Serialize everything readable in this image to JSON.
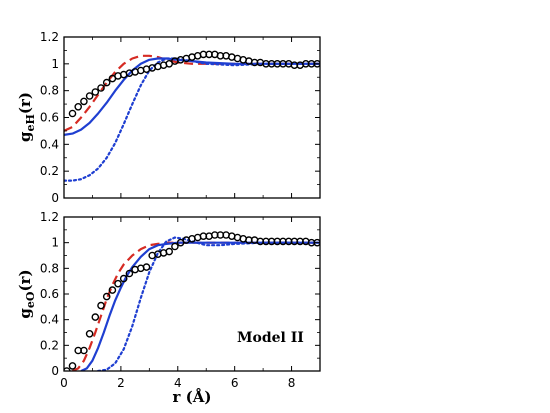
{
  "chart_data": [
    {
      "type": "line",
      "id": "eH",
      "ylabel_main": "g",
      "ylabel_sub": "eH",
      "ylabel_tail": "(r)",
      "xlabel": "",
      "xlim": [
        0,
        9
      ],
      "ylim": [
        0,
        1.2
      ],
      "xticks": [
        0,
        2,
        4,
        6,
        8
      ],
      "yticks": [
        0,
        0.2,
        0.4,
        0.6,
        0.8,
        1,
        1.2
      ],
      "ytick_labels": [
        "0",
        "0.2",
        "0.4",
        "0.6",
        "0.8",
        "1",
        "1.2"
      ],
      "show_xtick_labels": false,
      "series": [
        {
          "style": "dashed",
          "color": "#d62b23",
          "x": [
            0,
            0.3,
            0.6,
            0.9,
            1.2,
            1.5,
            1.8,
            2.1,
            2.4,
            2.7,
            3.0,
            3.3,
            3.6,
            4.0,
            4.5,
            5.0,
            6.0,
            7.0,
            8.0,
            9.0
          ],
          "y": [
            0.5,
            0.53,
            0.6,
            0.68,
            0.77,
            0.86,
            0.94,
            1.0,
            1.04,
            1.06,
            1.06,
            1.05,
            1.03,
            1.01,
            1.0,
            1.0,
            1.0,
            1.0,
            1.0,
            1.0
          ]
        },
        {
          "style": "solid",
          "color": "#1f3fd1",
          "x": [
            0,
            0.3,
            0.6,
            0.9,
            1.2,
            1.5,
            1.8,
            2.1,
            2.4,
            2.7,
            3.0,
            3.3,
            3.6,
            4.0,
            4.5,
            5.0,
            6.0,
            7.0,
            8.0,
            9.0
          ],
          "y": [
            0.47,
            0.48,
            0.51,
            0.56,
            0.63,
            0.71,
            0.8,
            0.88,
            0.95,
            1.0,
            1.03,
            1.04,
            1.04,
            1.03,
            1.02,
            1.01,
            1.0,
            1.0,
            1.0,
            1.0
          ]
        },
        {
          "style": "dotted",
          "color": "#1f3fd1",
          "x": [
            0,
            0.3,
            0.6,
            0.9,
            1.2,
            1.5,
            1.8,
            2.1,
            2.4,
            2.7,
            3.0,
            3.3,
            3.6,
            3.9,
            4.2,
            4.5,
            5.0,
            6.0,
            7.0,
            8.0,
            9.0
          ],
          "y": [
            0.13,
            0.13,
            0.14,
            0.17,
            0.22,
            0.3,
            0.41,
            0.55,
            0.7,
            0.84,
            0.95,
            1.01,
            1.04,
            1.04,
            1.03,
            1.02,
            1.0,
            0.99,
            1.0,
            1.0,
            1.0
          ]
        },
        {
          "style": "circles",
          "color": "#000000",
          "x": [
            0.3,
            0.5,
            0.7,
            0.9,
            1.1,
            1.3,
            1.5,
            1.7,
            1.9,
            2.1,
            2.3,
            2.5,
            2.7,
            2.9,
            3.1,
            3.3,
            3.5,
            3.7,
            3.9,
            4.1,
            4.3,
            4.5,
            4.7,
            4.9,
            5.1,
            5.3,
            5.5,
            5.7,
            5.9,
            6.1,
            6.3,
            6.5,
            6.7,
            6.9,
            7.1,
            7.3,
            7.5,
            7.7,
            7.9,
            8.1,
            8.3,
            8.5,
            8.7,
            8.9
          ],
          "y": [
            0.63,
            0.68,
            0.72,
            0.76,
            0.79,
            0.82,
            0.86,
            0.89,
            0.91,
            0.92,
            0.93,
            0.94,
            0.95,
            0.96,
            0.97,
            0.98,
            0.99,
            1.0,
            1.02,
            1.03,
            1.04,
            1.05,
            1.06,
            1.07,
            1.07,
            1.07,
            1.06,
            1.06,
            1.05,
            1.04,
            1.03,
            1.02,
            1.01,
            1.01,
            1.0,
            1.0,
            1.0,
            1.0,
            1.0,
            0.99,
            0.99,
            1.0,
            1.0,
            1.0
          ]
        }
      ]
    },
    {
      "type": "line",
      "id": "eO",
      "ylabel_main": "g",
      "ylabel_sub": "eO",
      "ylabel_tail": "(r)",
      "xlabel": "r (Å)",
      "xlim": [
        0,
        9
      ],
      "ylim": [
        0,
        1.2
      ],
      "xticks": [
        0,
        2,
        4,
        6,
        8
      ],
      "xtick_labels": [
        "0",
        "2",
        "4",
        "6",
        "8"
      ],
      "yticks": [
        0,
        0.2,
        0.4,
        0.6,
        0.8,
        1,
        1.2
      ],
      "ytick_labels": [
        "0",
        "0.2",
        "0.4",
        "0.6",
        "0.8",
        "1",
        "1.2"
      ],
      "show_xtick_labels": true,
      "annotation": "Model II",
      "series": [
        {
          "style": "dashed",
          "color": "#d62b23",
          "x": [
            0.3,
            0.5,
            0.7,
            0.9,
            1.1,
            1.3,
            1.5,
            1.7,
            1.9,
            2.1,
            2.4,
            2.7,
            3.0,
            3.3,
            3.6,
            4.0,
            4.5,
            5.0,
            6.0,
            7.0,
            8.0,
            9.0
          ],
          "y": [
            0.0,
            0.02,
            0.08,
            0.18,
            0.3,
            0.43,
            0.56,
            0.67,
            0.76,
            0.83,
            0.9,
            0.95,
            0.98,
            0.99,
            1.0,
            1.0,
            1.0,
            1.0,
            1.0,
            1.0,
            1.0,
            1.0
          ]
        },
        {
          "style": "solid",
          "color": "#1f3fd1",
          "x": [
            0.6,
            0.8,
            1.0,
            1.2,
            1.4,
            1.6,
            1.8,
            2.0,
            2.2,
            2.4,
            2.7,
            3.0,
            3.3,
            3.6,
            4.0,
            4.5,
            5.0,
            6.0,
            7.0,
            8.0,
            9.0
          ],
          "y": [
            0.0,
            0.02,
            0.08,
            0.18,
            0.3,
            0.43,
            0.55,
            0.65,
            0.74,
            0.81,
            0.89,
            0.95,
            0.98,
            0.99,
            1.0,
            1.0,
            1.0,
            1.0,
            1.0,
            1.0,
            1.0
          ]
        },
        {
          "style": "dotted",
          "color": "#1f3fd1",
          "x": [
            1.2,
            1.5,
            1.8,
            2.1,
            2.4,
            2.7,
            3.0,
            3.3,
            3.6,
            3.9,
            4.2,
            4.5,
            5.0,
            5.5,
            6.0,
            7.0,
            8.0,
            9.0
          ],
          "y": [
            0.0,
            0.01,
            0.06,
            0.17,
            0.35,
            0.57,
            0.77,
            0.92,
            1.01,
            1.04,
            1.03,
            1.01,
            0.98,
            0.98,
            0.99,
            1.0,
            1.0,
            1.0
          ]
        },
        {
          "style": "circles",
          "color": "#000000",
          "x": [
            0.1,
            0.3,
            0.5,
            0.7,
            0.9,
            1.1,
            1.3,
            1.5,
            1.7,
            1.9,
            2.1,
            2.3,
            2.5,
            2.7,
            2.9,
            3.1,
            3.3,
            3.5,
            3.7,
            3.9,
            4.1,
            4.3,
            4.5,
            4.7,
            4.9,
            5.1,
            5.3,
            5.5,
            5.7,
            5.9,
            6.1,
            6.3,
            6.5,
            6.7,
            6.9,
            7.1,
            7.3,
            7.5,
            7.7,
            7.9,
            8.1,
            8.3,
            8.5,
            8.7,
            8.9
          ],
          "y": [
            0.0,
            0.04,
            0.16,
            0.16,
            0.29,
            0.42,
            0.51,
            0.58,
            0.63,
            0.68,
            0.72,
            0.76,
            0.79,
            0.8,
            0.81,
            0.9,
            0.91,
            0.92,
            0.93,
            0.97,
            1.0,
            1.02,
            1.03,
            1.04,
            1.05,
            1.05,
            1.06,
            1.06,
            1.06,
            1.05,
            1.04,
            1.03,
            1.02,
            1.02,
            1.01,
            1.01,
            1.01,
            1.01,
            1.01,
            1.01,
            1.01,
            1.01,
            1.01,
            1.0,
            1.0
          ]
        }
      ]
    }
  ]
}
